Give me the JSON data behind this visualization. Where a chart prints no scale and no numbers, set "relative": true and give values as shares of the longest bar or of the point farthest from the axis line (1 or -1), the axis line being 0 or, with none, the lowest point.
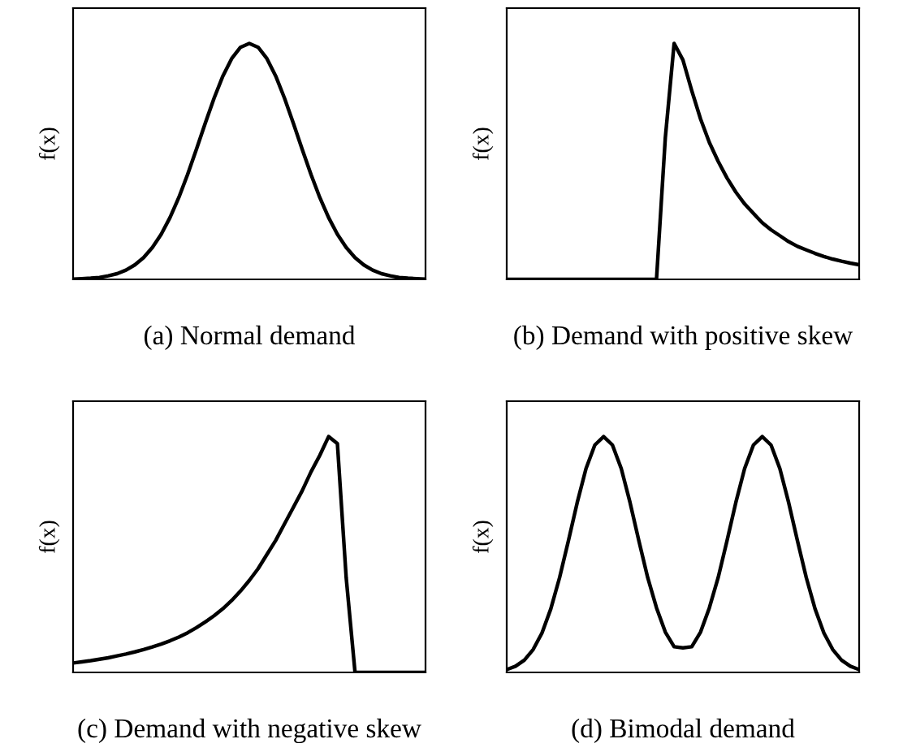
{
  "chart_data": [
    {
      "type": "line",
      "title": "(a) Normal demand",
      "ylabel": "f(x)",
      "relative": true,
      "tick_labels": false,
      "color": "#000000",
      "categories": [
        null,
        null,
        null,
        null,
        null,
        null,
        null,
        null,
        null,
        null,
        null,
        null,
        null,
        null,
        null,
        null,
        null,
        null,
        null,
        null,
        null,
        null,
        null,
        null,
        null,
        null,
        null,
        null,
        null,
        null,
        null,
        null,
        null,
        null,
        null,
        null,
        null,
        null,
        null,
        null,
        null
      ],
      "values": [
        0.001,
        0.003,
        0.005,
        0.008,
        0.015,
        0.024,
        0.039,
        0.061,
        0.092,
        0.135,
        0.191,
        0.262,
        0.347,
        0.445,
        0.552,
        0.662,
        0.768,
        0.862,
        0.936,
        0.984,
        1.0,
        0.984,
        0.936,
        0.862,
        0.768,
        0.662,
        0.552,
        0.445,
        0.347,
        0.262,
        0.191,
        0.135,
        0.092,
        0.061,
        0.039,
        0.024,
        0.015,
        0.008,
        0.005,
        0.003,
        0.001
      ]
    },
    {
      "type": "line",
      "title": "(b) Demand with positive skew",
      "ylabel": "f(x)",
      "relative": true,
      "tick_labels": false,
      "color": "#000000",
      "categories": [
        null,
        null,
        null,
        null,
        null,
        null,
        null,
        null,
        null,
        null,
        null,
        null,
        null,
        null,
        null,
        null,
        null,
        null,
        null,
        null,
        null,
        null,
        null,
        null,
        null,
        null,
        null,
        null,
        null,
        null,
        null,
        null,
        null,
        null,
        null,
        null,
        null,
        null,
        null,
        null,
        null
      ],
      "values": [
        0,
        0,
        0,
        0,
        0,
        0,
        0,
        0,
        0,
        0,
        0,
        0,
        0,
        0,
        0,
        0,
        0,
        0,
        0.6,
        1.0,
        0.93,
        0.8,
        0.68,
        0.58,
        0.5,
        0.43,
        0.37,
        0.32,
        0.28,
        0.24,
        0.21,
        0.185,
        0.16,
        0.14,
        0.125,
        0.11,
        0.097,
        0.086,
        0.077,
        0.069,
        0.062
      ]
    },
    {
      "type": "line",
      "title": "(c) Demand with negative skew",
      "ylabel": "f(x)",
      "relative": true,
      "tick_labels": false,
      "color": "#000000",
      "categories": [
        null,
        null,
        null,
        null,
        null,
        null,
        null,
        null,
        null,
        null,
        null,
        null,
        null,
        null,
        null,
        null,
        null,
        null,
        null,
        null,
        null,
        null,
        null,
        null,
        null,
        null,
        null,
        null,
        null,
        null,
        null,
        null,
        null,
        null,
        null,
        null,
        null,
        null,
        null,
        null,
        null
      ],
      "values": [
        0.04,
        0.045,
        0.05,
        0.056,
        0.062,
        0.07,
        0.078,
        0.087,
        0.097,
        0.108,
        0.12,
        0.134,
        0.15,
        0.168,
        0.19,
        0.214,
        0.24,
        0.27,
        0.305,
        0.345,
        0.39,
        0.44,
        0.5,
        0.56,
        0.63,
        0.7,
        0.77,
        0.85,
        0.92,
        1.0,
        0.97,
        0.4,
        0,
        0,
        0,
        0,
        0,
        0,
        0,
        0,
        0
      ]
    },
    {
      "type": "line",
      "title": "(d) Bimodal demand",
      "ylabel": "f(x)",
      "relative": true,
      "tick_labels": false,
      "color": "#000000",
      "categories": [
        null,
        null,
        null,
        null,
        null,
        null,
        null,
        null,
        null,
        null,
        null,
        null,
        null,
        null,
        null,
        null,
        null,
        null,
        null,
        null,
        null,
        null,
        null,
        null,
        null,
        null,
        null,
        null,
        null,
        null,
        null,
        null,
        null,
        null,
        null,
        null,
        null,
        null,
        null,
        null,
        null
      ],
      "values": [
        0.012,
        0.026,
        0.052,
        0.097,
        0.167,
        0.269,
        0.402,
        0.558,
        0.72,
        0.864,
        0.964,
        1.0,
        0.964,
        0.864,
        0.72,
        0.558,
        0.402,
        0.274,
        0.171,
        0.109,
        0.104,
        0.109,
        0.171,
        0.274,
        0.402,
        0.558,
        0.72,
        0.864,
        0.964,
        1.0,
        0.964,
        0.864,
        0.72,
        0.558,
        0.402,
        0.269,
        0.167,
        0.097,
        0.052,
        0.026,
        0.012
      ]
    }
  ]
}
